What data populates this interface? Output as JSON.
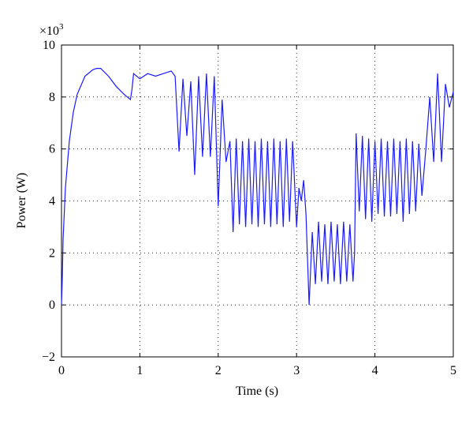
{
  "chart_data": {
    "type": "line",
    "xlabel": "Time (s)",
    "ylabel": "Power (W)",
    "y_multiplier": {
      "base": "×10",
      "power": "3"
    },
    "xlim": [
      0,
      5
    ],
    "xticks": [
      0,
      1,
      2,
      3,
      4,
      5
    ],
    "ylim": [
      -2,
      10
    ],
    "yticks": [
      -2,
      0,
      2,
      4,
      6,
      8,
      10
    ],
    "grid": true,
    "series": [
      {
        "color": "#1a1aff",
        "x": [
          0,
          0.01,
          0.02,
          0.05,
          0.1,
          0.15,
          0.2,
          0.3,
          0.4,
          0.45,
          0.5,
          0.6,
          0.7,
          0.8,
          0.88,
          0.9,
          0.92,
          1.0,
          1.1,
          1.2,
          1.3,
          1.4,
          1.45,
          1.5,
          1.55,
          1.6,
          1.65,
          1.7,
          1.75,
          1.8,
          1.85,
          1.9,
          1.95,
          2.0,
          2.05,
          2.1,
          2.15,
          2.19,
          2.23,
          2.27,
          2.31,
          2.35,
          2.39,
          2.43,
          2.47,
          2.51,
          2.55,
          2.59,
          2.63,
          2.67,
          2.71,
          2.75,
          2.79,
          2.83,
          2.87,
          2.91,
          2.95,
          3.0,
          3.03,
          3.06,
          3.09,
          3.12,
          3.16,
          3.2,
          3.24,
          3.28,
          3.32,
          3.36,
          3.4,
          3.44,
          3.48,
          3.52,
          3.56,
          3.6,
          3.64,
          3.68,
          3.72,
          3.74,
          3.76,
          3.8,
          3.84,
          3.88,
          3.92,
          3.96,
          4.0,
          4.04,
          4.08,
          4.12,
          4.16,
          4.2,
          4.24,
          4.28,
          4.32,
          4.36,
          4.4,
          4.44,
          4.48,
          4.52,
          4.56,
          4.6,
          4.65,
          4.7,
          4.75,
          4.8,
          4.85,
          4.9,
          4.95,
          5.0
        ],
        "values": [
          0,
          1.0,
          2.5,
          4.5,
          6.3,
          7.4,
          8.1,
          8.8,
          9.05,
          9.1,
          9.1,
          8.8,
          8.4,
          8.1,
          7.9,
          8.3,
          8.9,
          8.7,
          8.9,
          8.8,
          8.9,
          9.0,
          8.8,
          5.9,
          8.7,
          6.5,
          8.6,
          5.0,
          8.8,
          5.7,
          8.9,
          5.7,
          8.8,
          3.8,
          7.9,
          5.5,
          6.3,
          2.8,
          6.4,
          3.1,
          6.3,
          3.0,
          6.4,
          3.1,
          6.3,
          3.0,
          6.4,
          3.1,
          6.3,
          3.0,
          6.4,
          3.1,
          6.3,
          3.0,
          6.4,
          3.2,
          6.3,
          3.0,
          4.5,
          4.0,
          4.8,
          3.5,
          0.0,
          2.8,
          0.8,
          3.2,
          0.9,
          3.1,
          0.8,
          3.2,
          0.9,
          3.1,
          0.8,
          3.2,
          0.9,
          3.1,
          0.9,
          2.0,
          6.6,
          3.6,
          6.5,
          3.3,
          6.4,
          3.2,
          6.3,
          3.5,
          6.4,
          3.4,
          6.3,
          3.4,
          6.4,
          3.5,
          6.3,
          3.2,
          6.4,
          3.5,
          6.3,
          3.6,
          6.2,
          4.2,
          6.0,
          8.0,
          5.5,
          8.9,
          5.5,
          8.5,
          7.6,
          8.2
        ]
      }
    ]
  }
}
